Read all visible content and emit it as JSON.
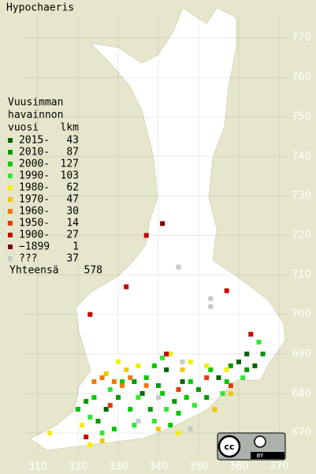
{
  "title": "Hypochaeris",
  "legend": {
    "title": [
      "Vuusimman",
      "havainnon",
      "vuosi"
    ],
    "count_header": "lkm",
    "total_label": "Yhteensä",
    "total": 578,
    "classes": [
      {
        "label": "2015-",
        "count": 43,
        "color": "#006400",
        "cells": [
          [
            342,
            686
          ],
          [
            346,
            683
          ],
          [
            360,
            688
          ],
          [
            362,
            690
          ],
          [
            364,
            687
          ],
          [
            336,
            680
          ],
          [
            355,
            684
          ],
          [
            327,
            676
          ]
        ]
      },
      {
        "label": "2010-",
        "count": 87,
        "color": "#009a00",
        "cells": [
          [
            322,
            678
          ],
          [
            330,
            679
          ],
          [
            334,
            683
          ],
          [
            340,
            682
          ],
          [
            344,
            678
          ],
          [
            350,
            681
          ],
          [
            358,
            687
          ],
          [
            362,
            686
          ],
          [
            366,
            690
          ],
          [
            325,
            673
          ],
          [
            338,
            676
          ],
          [
            352,
            679
          ]
        ]
      },
      {
        "label": "2000-",
        "count": 127,
        "color": "#00c800",
        "cells": [
          [
            320,
            676
          ],
          [
            324,
            679
          ],
          [
            331,
            683
          ],
          [
            337,
            684
          ],
          [
            341,
            680
          ],
          [
            345,
            675
          ],
          [
            348,
            683
          ],
          [
            353,
            686
          ],
          [
            357,
            683
          ],
          [
            333,
            676
          ],
          [
            329,
            671
          ],
          [
            343,
            672
          ],
          [
            339,
            687
          ],
          [
            347,
            679
          ]
        ]
      },
      {
        "label": "1990-",
        "count": 103,
        "color": "#32e632",
        "cells": [
          [
            323,
            674
          ],
          [
            328,
            681
          ],
          [
            335,
            679
          ],
          [
            339,
            673
          ],
          [
            342,
            676
          ],
          [
            349,
            677
          ],
          [
            356,
            680
          ],
          [
            361,
            684
          ],
          [
            326,
            670
          ],
          [
            334,
            672
          ],
          [
            341,
            689
          ],
          [
            365,
            693
          ]
        ]
      },
      {
        "label": "1980-",
        "count": 62,
        "color": "#f0f000",
        "cells": [
          [
            321,
            672
          ],
          [
            330,
            688
          ],
          [
            335,
            687
          ],
          [
            343,
            690
          ],
          [
            348,
            688
          ],
          [
            352,
            687
          ],
          [
            357,
            686
          ],
          [
            323,
            667
          ],
          [
            345,
            670
          ],
          [
            313,
            670
          ]
        ]
      },
      {
        "label": "1970-",
        "count": 47,
        "color": "#f0c800",
        "cells": [
          [
            327,
            685
          ],
          [
            332,
            686
          ],
          [
            346,
            686
          ],
          [
            354,
            676
          ],
          [
            358,
            680
          ],
          [
            326,
            668
          ],
          [
            340,
            671
          ]
        ]
      },
      {
        "label": "1960-",
        "count": 30,
        "color": "#f07800",
        "cells": [
          [
            324,
            683
          ],
          [
            326,
            684
          ],
          [
            329,
            683
          ],
          [
            331,
            682
          ],
          [
            333,
            684
          ],
          [
            337,
            682
          ]
        ]
      },
      {
        "label": "1950-",
        "count": 14,
        "color": "#e03c00",
        "cells": [
          [
            358,
            682
          ],
          [
            352,
            684
          ],
          [
            345,
            681
          ],
          [
            328,
            677
          ]
        ]
      },
      {
        "label": "1900-",
        "count": 27,
        "color": "#c80000",
        "cells": [
          [
            337,
            720
          ],
          [
            323,
            700
          ],
          [
            332,
            707
          ],
          [
            357,
            706
          ],
          [
            342,
            690
          ],
          [
            363,
            695
          ],
          [
            322,
            669
          ]
        ]
      },
      {
        "label": "−1899",
        "count": 1,
        "color": "#800000",
        "cells": [
          [
            341,
            723
          ]
        ]
      },
      {
        "label": "???",
        "count": 37,
        "color": "#c8c8c8",
        "cells": [
          [
            345,
            712
          ],
          [
            353,
            704
          ],
          [
            353,
            702
          ],
          [
            346,
            688
          ],
          [
            340,
            679
          ],
          [
            335,
            673
          ],
          [
            348,
            671
          ]
        ]
      }
    ]
  },
  "xticks": [
    310,
    320,
    330,
    340,
    350,
    360,
    370
  ],
  "yticks": [
    670,
    680,
    690,
    700,
    710,
    720,
    730,
    740,
    750,
    760,
    770
  ],
  "license": {
    "cc": "cc",
    "by": "BY"
  }
}
